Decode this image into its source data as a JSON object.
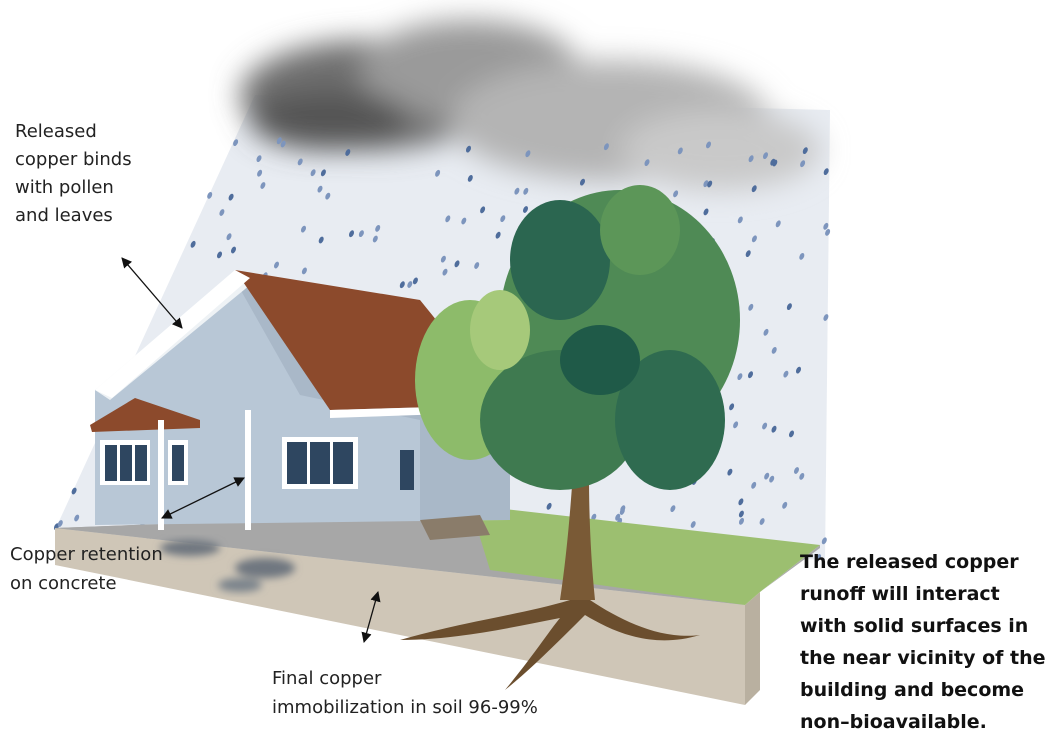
{
  "labels": {
    "pollen": {
      "lines": [
        "Released",
        "copper binds",
        "with pollen",
        "and leaves"
      ]
    },
    "concrete": {
      "lines": [
        "Copper retention",
        "on concrete"
      ]
    },
    "soil": {
      "lines": [
        "Final copper",
        "immobilization in soil 96-99%"
      ]
    },
    "summary": {
      "lines": [
        "The released copper",
        "runoff will interact",
        "with solid surfaces in",
        "the near vicinity of the",
        "building and become",
        "non–bioavailable."
      ]
    }
  }
}
